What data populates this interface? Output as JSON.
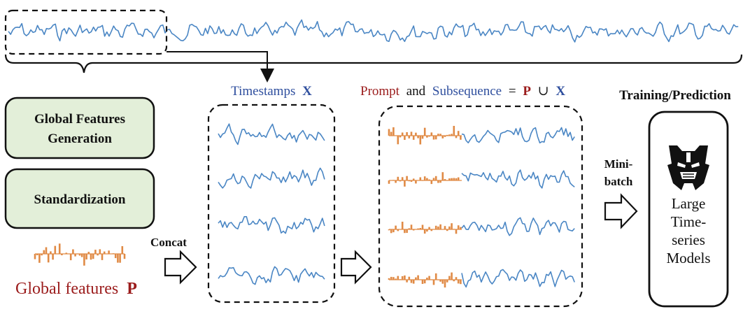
{
  "diagram": {
    "boxes": {
      "global_features_line1": "Global Features",
      "global_features_line2": "Generation",
      "standardization": "Standardization"
    },
    "global_features_caption": "Global features",
    "global_features_symbol": "P",
    "concat_label": "Concat",
    "timestamps_label": "Timestamps",
    "timestamps_symbol": "X",
    "prompt_header": {
      "prompt": "Prompt",
      "and": "and",
      "subsequence": "Subsequence",
      "equals": "=",
      "p": "P",
      "union": "∪",
      "x": "X"
    },
    "training_label": "Training/Prediction",
    "minibatch_line1": "Mini-",
    "minibatch_line2": "batch",
    "model_lines": [
      "Large",
      "Time-",
      "series",
      "Models"
    ],
    "colors": {
      "series_blue": "#4a86c4",
      "prompt_orange": "#e08a45",
      "prompt_red": "#9b1c1c",
      "subsequence_blue": "#2f4f9e",
      "box_green": "#e3efd9"
    },
    "icons": [
      "transformers-logo-icon",
      "hollow-right-arrow-icon",
      "down-arrow-icon",
      "curly-brace-icon"
    ]
  }
}
